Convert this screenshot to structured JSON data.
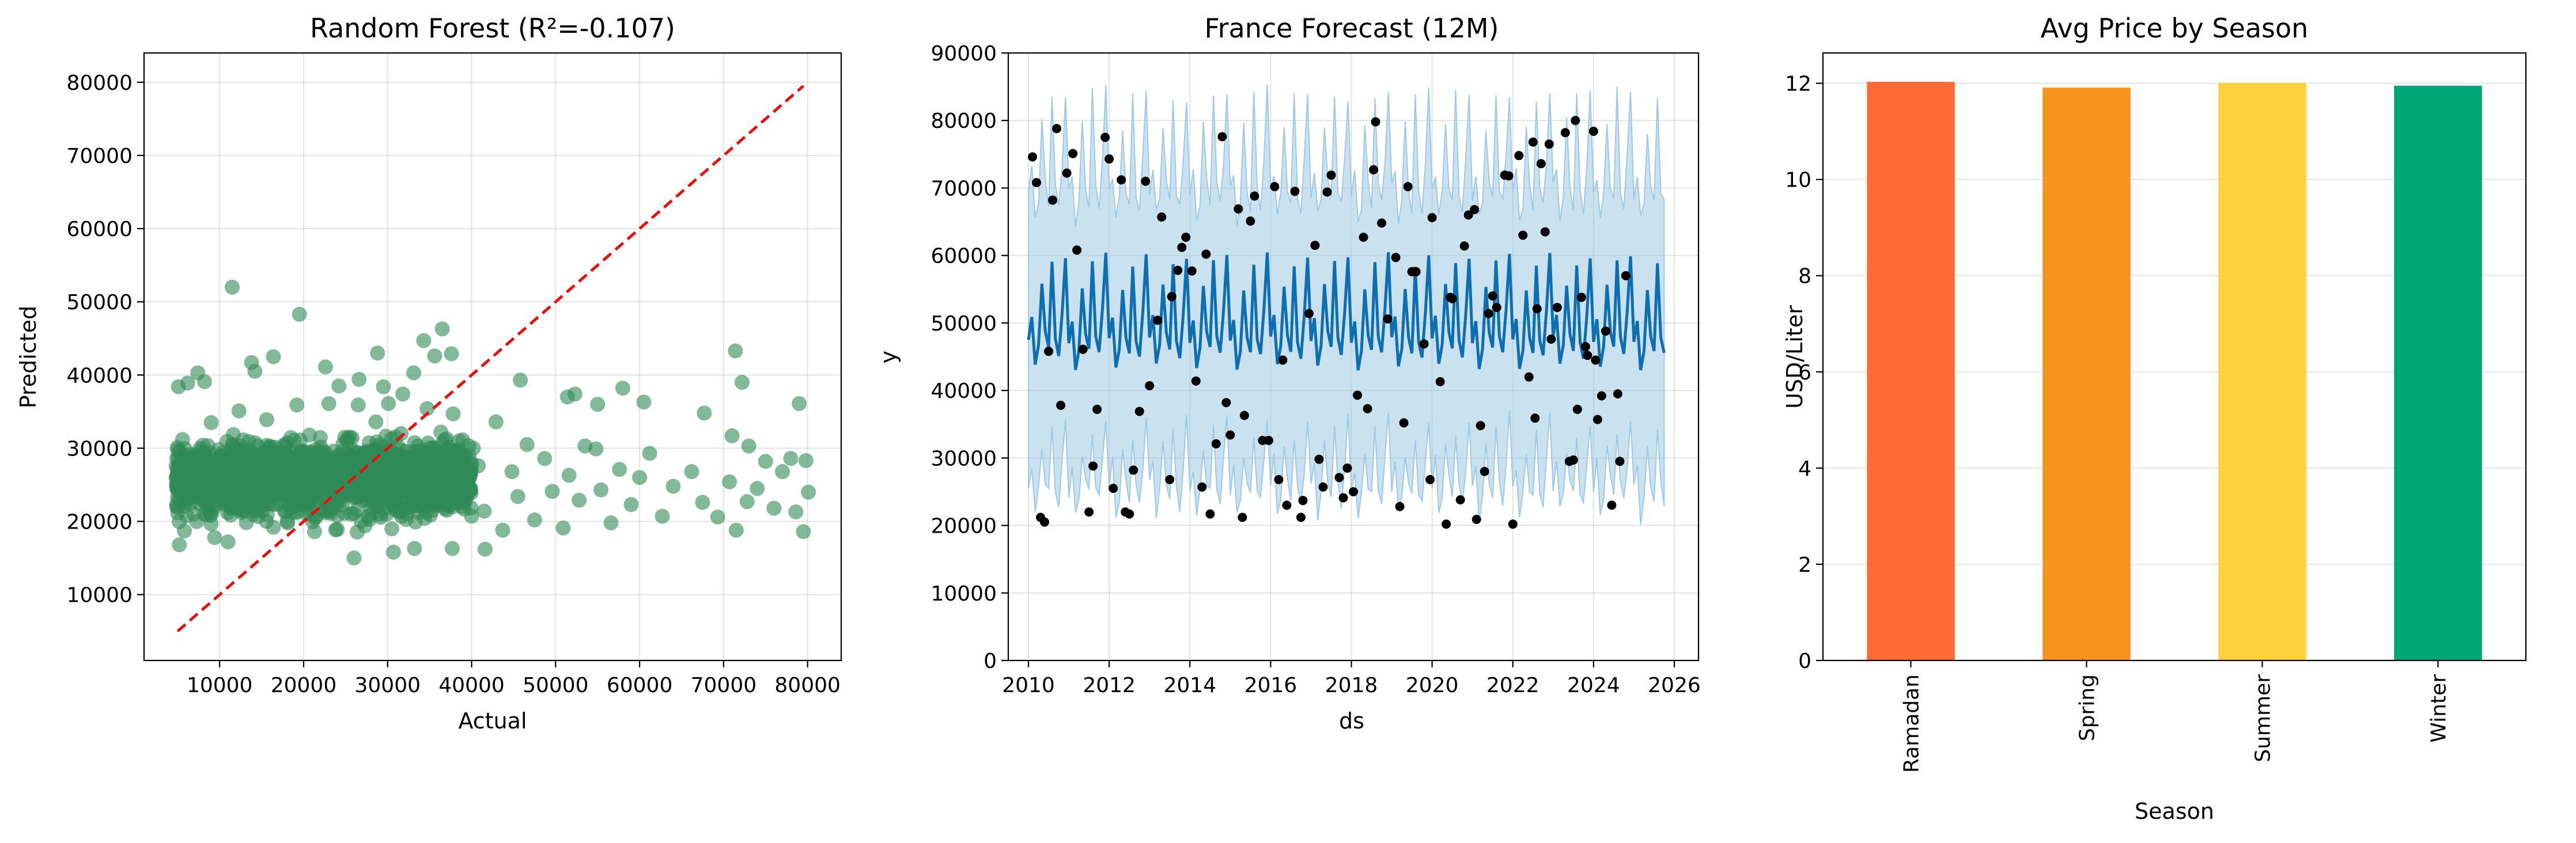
{
  "chart_data": [
    {
      "type": "scatter",
      "title": "Random Forest (R²=-0.107)",
      "xlabel": "Actual",
      "ylabel": "Predicted",
      "xlim": [
        1000,
        84000
      ],
      "ylim": [
        1000,
        84000
      ],
      "xticks": [
        10000,
        20000,
        30000,
        40000,
        50000,
        60000,
        70000,
        80000
      ],
      "yticks": [
        10000,
        20000,
        30000,
        40000,
        50000,
        60000,
        70000,
        80000
      ],
      "grid": true,
      "point_color": "#2e8b57",
      "reference_line": {
        "x": [
          5000,
          79500
        ],
        "y": [
          5000,
          79500
        ],
        "color": "#e8120c",
        "style": "dashed"
      },
      "points": [
        [
          11500,
          52000
        ],
        [
          19500,
          48300
        ],
        [
          28800,
          43000
        ],
        [
          36500,
          46300
        ],
        [
          34300,
          44700
        ],
        [
          33100,
          40300
        ],
        [
          35600,
          42600
        ],
        [
          37600,
          42900
        ],
        [
          13800,
          41700
        ],
        [
          14200,
          40500
        ],
        [
          16400,
          42500
        ],
        [
          22600,
          41100
        ],
        [
          24200,
          38500
        ],
        [
          26600,
          39400
        ],
        [
          29500,
          38400
        ],
        [
          31800,
          37400
        ],
        [
          7400,
          40300
        ],
        [
          8200,
          39100
        ],
        [
          5100,
          38400
        ],
        [
          6200,
          38900
        ],
        [
          45800,
          39300
        ],
        [
          51400,
          37000
        ],
        [
          52300,
          37400
        ],
        [
          55000,
          36000
        ],
        [
          58000,
          38200
        ],
        [
          60500,
          36300
        ],
        [
          67700,
          34800
        ],
        [
          71400,
          43300
        ],
        [
          72200,
          39000
        ],
        [
          79000,
          36100
        ],
        [
          71000,
          31700
        ],
        [
          73000,
          30300
        ],
        [
          75000,
          28200
        ],
        [
          77000,
          26800
        ],
        [
          78000,
          28600
        ],
        [
          79800,
          28300
        ],
        [
          80100,
          24000
        ],
        [
          78600,
          21300
        ],
        [
          79500,
          18600
        ],
        [
          76000,
          21800
        ],
        [
          74000,
          24500
        ],
        [
          72800,
          22700
        ],
        [
          71500,
          18800
        ],
        [
          70700,
          25400
        ],
        [
          69300,
          20600
        ],
        [
          67500,
          22600
        ],
        [
          66200,
          26800
        ],
        [
          64000,
          24800
        ],
        [
          62700,
          20700
        ],
        [
          61200,
          29300
        ],
        [
          60000,
          26000
        ],
        [
          59000,
          22300
        ],
        [
          57600,
          27100
        ],
        [
          56600,
          19800
        ],
        [
          55400,
          24300
        ],
        [
          54800,
          29900
        ],
        [
          53500,
          30300
        ],
        [
          52800,
          22900
        ],
        [
          51600,
          26300
        ],
        [
          50900,
          19100
        ],
        [
          49600,
          24100
        ],
        [
          48700,
          28600
        ],
        [
          47500,
          20200
        ],
        [
          46600,
          30500
        ],
        [
          45500,
          23400
        ],
        [
          44800,
          26800
        ],
        [
          43700,
          18800
        ],
        [
          42900,
          33600
        ],
        [
          41500,
          21400
        ],
        [
          40800,
          27600
        ],
        [
          40200,
          30000
        ],
        [
          41600,
          16200
        ],
        [
          26000,
          15000
        ],
        [
          30700,
          15800
        ],
        [
          33200,
          16300
        ],
        [
          37700,
          16300
        ],
        [
          5200,
          16800
        ],
        [
          5800,
          18700
        ],
        [
          9400,
          17800
        ],
        [
          11000,
          17200
        ],
        [
          8200,
          21000
        ],
        [
          12600,
          21200
        ],
        [
          6500,
          23500
        ],
        [
          16400,
          19200
        ],
        [
          18100,
          19800
        ],
        [
          21300,
          18600
        ],
        [
          24000,
          18900
        ],
        [
          27300,
          19400
        ],
        [
          30500,
          19000
        ],
        [
          34400,
          20400
        ],
        [
          7000,
          29000
        ],
        [
          10200,
          28200
        ],
        [
          13500,
          30900
        ],
        [
          17300,
          29300
        ],
        [
          20700,
          31800
        ],
        [
          24900,
          31500
        ],
        [
          28600,
          33600
        ],
        [
          31600,
          32000
        ],
        [
          35600,
          30000
        ],
        [
          38500,
          31000
        ],
        [
          9000,
          33500
        ],
        [
          12300,
          35100
        ],
        [
          15600,
          33900
        ],
        [
          19200,
          35900
        ],
        [
          23000,
          36100
        ],
        [
          26500,
          35900
        ],
        [
          30100,
          36100
        ],
        [
          34700,
          35400
        ],
        [
          37800,
          34700
        ],
        [
          11400,
          24700
        ],
        [
          15000,
          26100
        ],
        [
          18400,
          23600
        ],
        [
          22400,
          27100
        ],
        [
          26100,
          25000
        ],
        [
          29700,
          27600
        ],
        [
          33000,
          24500
        ],
        [
          36600,
          26400
        ],
        [
          39200,
          23200
        ],
        [
          8400,
          26600
        ]
      ],
      "cluster": {
        "x_range": [
          4800,
          40000
        ],
        "y_range": [
          17000,
          34000
        ],
        "center_y": 26000,
        "count": 1700
      }
    },
    {
      "type": "line",
      "title": "France Forecast (12M)",
      "xlabel": "ds",
      "ylabel": "y",
      "xlim": [
        2009.5,
        2026.6
      ],
      "ylim": [
        0,
        90000
      ],
      "xticks": [
        2010,
        2012,
        2014,
        2016,
        2018,
        2020,
        2022,
        2024,
        2026
      ],
      "yticks": [
        0,
        10000,
        20000,
        30000,
        40000,
        50000,
        60000,
        70000,
        80000,
        90000
      ],
      "grid": true,
      "line_color": "#0e6fb0",
      "band_color": "#9fc9e4",
      "point_color": "#000000",
      "x_start": 2010.0,
      "x_step": 0.08333,
      "forecast_pattern": [
        47500,
        50700,
        43500,
        46300,
        55300,
        48300,
        46000,
        58800,
        47600,
        45200,
        51600,
        60000
      ],
      "band_halfwidth_pattern": [
        22000,
        21500,
        22000,
        21800,
        24000,
        22000,
        21500,
        25000,
        22000,
        22000,
        22500,
        24000
      ],
      "observed": [
        [
          2010.1,
          74600
        ],
        [
          2010.2,
          70800
        ],
        [
          2010.3,
          21200
        ],
        [
          2010.4,
          20500
        ],
        [
          2010.5,
          45800
        ],
        [
          2010.6,
          68200
        ],
        [
          2010.7,
          78800
        ],
        [
          2010.8,
          37800
        ],
        [
          2010.95,
          72200
        ],
        [
          2011.1,
          75100
        ],
        [
          2011.2,
          60800
        ],
        [
          2011.35,
          46100
        ],
        [
          2011.5,
          22000
        ],
        [
          2011.6,
          28800
        ],
        [
          2011.7,
          37200
        ],
        [
          2011.9,
          77500
        ],
        [
          2012.0,
          74300
        ],
        [
          2012.1,
          25500
        ],
        [
          2012.3,
          71200
        ],
        [
          2012.4,
          22000
        ],
        [
          2012.5,
          21700
        ],
        [
          2012.6,
          28200
        ],
        [
          2012.75,
          36900
        ],
        [
          2012.9,
          71000
        ],
        [
          2013.0,
          40700
        ],
        [
          2013.2,
          50400
        ],
        [
          2013.3,
          65700
        ],
        [
          2013.5,
          26800
        ],
        [
          2013.55,
          53900
        ],
        [
          2013.7,
          57800
        ],
        [
          2013.8,
          61200
        ],
        [
          2013.9,
          62700
        ],
        [
          2014.05,
          57700
        ],
        [
          2014.15,
          41400
        ],
        [
          2014.3,
          25700
        ],
        [
          2014.4,
          60200
        ],
        [
          2014.5,
          21700
        ],
        [
          2014.65,
          32100
        ],
        [
          2014.8,
          77600
        ],
        [
          2014.9,
          38200
        ],
        [
          2015.0,
          33400
        ],
        [
          2015.2,
          66900
        ],
        [
          2015.3,
          21200
        ],
        [
          2015.35,
          36300
        ],
        [
          2015.5,
          65100
        ],
        [
          2015.6,
          68800
        ],
        [
          2015.8,
          32600
        ],
        [
          2015.95,
          32600
        ],
        [
          2016.1,
          70200
        ],
        [
          2016.2,
          26800
        ],
        [
          2016.3,
          44500
        ],
        [
          2016.4,
          23000
        ],
        [
          2016.6,
          69500
        ],
        [
          2016.75,
          21200
        ],
        [
          2016.8,
          23700
        ],
        [
          2016.95,
          51400
        ],
        [
          2017.1,
          61500
        ],
        [
          2017.2,
          29800
        ],
        [
          2017.3,
          25700
        ],
        [
          2017.4,
          69400
        ],
        [
          2017.5,
          71900
        ],
        [
          2017.7,
          27100
        ],
        [
          2017.8,
          24100
        ],
        [
          2017.9,
          28500
        ],
        [
          2018.05,
          25000
        ],
        [
          2018.15,
          39300
        ],
        [
          2018.3,
          62700
        ],
        [
          2018.4,
          37300
        ],
        [
          2018.55,
          72700
        ],
        [
          2018.6,
          79800
        ],
        [
          2018.75,
          64800
        ],
        [
          2018.9,
          50600
        ],
        [
          2019.1,
          59700
        ],
        [
          2019.2,
          22800
        ],
        [
          2019.3,
          35200
        ],
        [
          2019.4,
          70200
        ],
        [
          2019.5,
          57600
        ],
        [
          2019.6,
          57600
        ],
        [
          2019.8,
          46900
        ],
        [
          2019.95,
          26800
        ],
        [
          2020.0,
          65600
        ],
        [
          2020.2,
          41300
        ],
        [
          2020.35,
          20200
        ],
        [
          2020.45,
          53800
        ],
        [
          2020.5,
          53600
        ],
        [
          2020.7,
          23800
        ],
        [
          2020.8,
          61400
        ],
        [
          2020.9,
          66000
        ],
        [
          2021.05,
          66800
        ],
        [
          2021.1,
          20900
        ],
        [
          2021.2,
          34800
        ],
        [
          2021.3,
          28000
        ],
        [
          2021.4,
          51400
        ],
        [
          2021.5,
          54000
        ],
        [
          2021.6,
          52300
        ],
        [
          2021.8,
          71900
        ],
        [
          2021.9,
          71800
        ],
        [
          2022.0,
          20200
        ],
        [
          2022.15,
          74800
        ],
        [
          2022.25,
          63000
        ],
        [
          2022.4,
          42000
        ],
        [
          2022.5,
          76800
        ],
        [
          2022.55,
          35900
        ],
        [
          2022.6,
          52100
        ],
        [
          2022.7,
          73600
        ],
        [
          2022.8,
          63500
        ],
        [
          2022.9,
          76500
        ],
        [
          2022.95,
          47600
        ],
        [
          2023.1,
          52300
        ],
        [
          2023.3,
          78200
        ],
        [
          2023.4,
          29500
        ],
        [
          2023.5,
          29700
        ],
        [
          2023.55,
          80000
        ],
        [
          2023.6,
          37200
        ],
        [
          2023.7,
          53800
        ],
        [
          2023.8,
          46500
        ],
        [
          2023.85,
          45200
        ],
        [
          2024.0,
          78400
        ],
        [
          2024.05,
          44500
        ],
        [
          2024.1,
          35700
        ],
        [
          2024.2,
          39200
        ],
        [
          2024.3,
          48800
        ],
        [
          2024.45,
          23000
        ],
        [
          2024.6,
          39500
        ],
        [
          2024.65,
          29500
        ],
        [
          2024.8,
          57000
        ]
      ]
    },
    {
      "type": "bar",
      "title": "Avg Price by Season",
      "xlabel": "Season",
      "ylabel": "USD/Liter",
      "categories": [
        "Ramadan",
        "Spring",
        "Summer",
        "Winter"
      ],
      "values": [
        12.03,
        11.91,
        12.01,
        11.95
      ],
      "colors": [
        "#ff6b35",
        "#f7931e",
        "#fdd23e",
        "#00a676"
      ],
      "ylim": [
        0,
        12.63
      ],
      "yticks": [
        0,
        2,
        4,
        6,
        8,
        10,
        12
      ],
      "grid": true
    }
  ]
}
